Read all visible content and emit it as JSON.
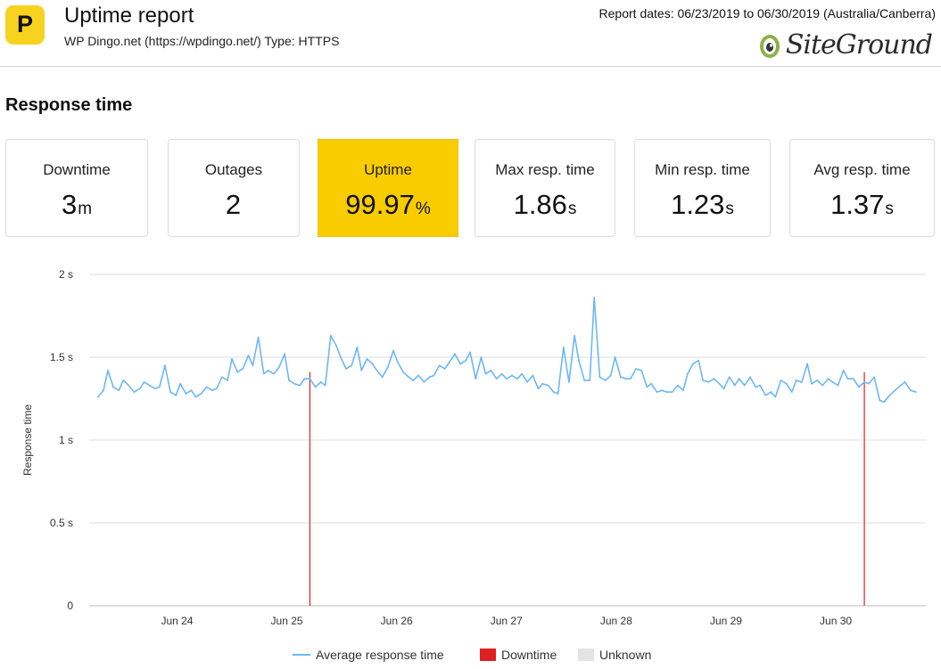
{
  "header": {
    "logo_letter": "P",
    "title": "Uptime report",
    "subtitle": "WP Dingo.net (https://wpdingo.net/) Type: HTTPS",
    "report_dates": "Report dates: 06/23/2019 to 06/30/2019 (Australia/Canberra)",
    "brand_logo_text": "SiteGround"
  },
  "section": {
    "title": "Response time"
  },
  "stats": [
    {
      "label": "Downtime",
      "value": "3",
      "unit": "m"
    },
    {
      "label": "Outages",
      "value": "2",
      "unit": ""
    },
    {
      "label": "Uptime",
      "value": "99.97",
      "unit": "%"
    },
    {
      "label": "Max resp. time",
      "value": "1.86",
      "unit": "s"
    },
    {
      "label": "Min resp. time",
      "value": "1.23",
      "unit": "s"
    },
    {
      "label": "Avg resp. time",
      "value": "1.37",
      "unit": "s"
    }
  ],
  "legend": {
    "avg": "Average response time",
    "down": "Downtime",
    "unknown": "Unknown"
  },
  "colors": {
    "highlight": "#f9cc00",
    "line": "#6cb8f3",
    "downtime": "#e02020",
    "unknown": "#e4e4e4",
    "grid": "#dddddd"
  },
  "chart_data": {
    "type": "line",
    "title": "",
    "xlabel": "",
    "ylabel": "Response time",
    "ylim": [
      0,
      2
    ],
    "y_ticks": [
      {
        "value": 0,
        "label": "0"
      },
      {
        "value": 0.5,
        "label": "0.5 s"
      },
      {
        "value": 1,
        "label": "1 s"
      },
      {
        "value": 1.5,
        "label": "1.5 s"
      },
      {
        "value": 2,
        "label": "2 s"
      }
    ],
    "xlim": [
      23.2,
      30.82
    ],
    "x_ticks": [
      {
        "value": 24,
        "label": "Jun 24"
      },
      {
        "value": 25,
        "label": "Jun 25"
      },
      {
        "value": 26,
        "label": "Jun 26"
      },
      {
        "value": 27,
        "label": "Jun 27"
      },
      {
        "value": 28,
        "label": "Jun 28"
      },
      {
        "value": 29,
        "label": "Jun 29"
      },
      {
        "value": 30,
        "label": "Jun 30"
      }
    ],
    "grid": "horizontal",
    "legend_position": "bottom",
    "downtime_events": [
      25.21,
      30.26
    ],
    "series": [
      {
        "name": "Average response time",
        "x": [
          23.28,
          23.33,
          23.37,
          23.42,
          23.47,
          23.51,
          23.56,
          23.61,
          23.66,
          23.7,
          23.75,
          23.8,
          23.84,
          23.89,
          23.94,
          23.99,
          24.03,
          24.08,
          24.13,
          24.17,
          24.22,
          24.27,
          24.32,
          24.36,
          24.41,
          24.46,
          24.5,
          24.55,
          24.6,
          24.65,
          24.69,
          24.74,
          24.79,
          24.83,
          24.88,
          24.93,
          24.98,
          25.02,
          25.07,
          25.12,
          25.16,
          25.21,
          25.26,
          25.31,
          25.35,
          25.4,
          25.45,
          25.49,
          25.54,
          25.59,
          25.64,
          25.68,
          25.73,
          25.78,
          25.82,
          25.87,
          25.92,
          25.97,
          26.01,
          26.06,
          26.11,
          26.15,
          26.2,
          26.25,
          26.3,
          26.34,
          26.39,
          26.44,
          26.48,
          26.53,
          26.58,
          26.63,
          26.67,
          26.72,
          26.77,
          26.81,
          26.86,
          26.91,
          26.96,
          27.0,
          27.05,
          27.1,
          27.14,
          27.19,
          27.24,
          27.29,
          27.33,
          27.38,
          27.43,
          27.47,
          27.52,
          27.57,
          27.62,
          27.66,
          27.71,
          27.76,
          27.8,
          27.85,
          27.9,
          27.95,
          27.99,
          28.04,
          28.09,
          28.13,
          28.18,
          28.23,
          28.28,
          28.32,
          28.37,
          28.42,
          28.46,
          28.51,
          28.56,
          28.61,
          28.65,
          28.7,
          28.75,
          28.79,
          28.84,
          28.89,
          28.94,
          28.98,
          29.03,
          29.08,
          29.12,
          29.17,
          29.22,
          29.27,
          29.31,
          29.36,
          29.41,
          29.45,
          29.5,
          29.55,
          29.6,
          29.64,
          29.69,
          29.74,
          29.78,
          29.83,
          29.88,
          29.93,
          29.97,
          30.02,
          30.07,
          30.11,
          30.16,
          30.21,
          30.26,
          30.3,
          30.35,
          30.4,
          30.44,
          30.49,
          30.54,
          30.59,
          30.63,
          30.68,
          30.73
        ],
        "values": [
          1.26,
          1.3,
          1.42,
          1.32,
          1.3,
          1.36,
          1.33,
          1.29,
          1.31,
          1.35,
          1.33,
          1.31,
          1.32,
          1.45,
          1.29,
          1.27,
          1.34,
          1.28,
          1.3,
          1.26,
          1.28,
          1.32,
          1.3,
          1.31,
          1.38,
          1.36,
          1.49,
          1.41,
          1.43,
          1.51,
          1.45,
          1.62,
          1.4,
          1.42,
          1.4,
          1.44,
          1.52,
          1.36,
          1.34,
          1.33,
          1.37,
          1.37,
          1.32,
          1.35,
          1.33,
          1.63,
          1.57,
          1.5,
          1.43,
          1.45,
          1.56,
          1.42,
          1.49,
          1.46,
          1.42,
          1.38,
          1.44,
          1.54,
          1.47,
          1.41,
          1.38,
          1.36,
          1.39,
          1.35,
          1.38,
          1.39,
          1.45,
          1.43,
          1.47,
          1.52,
          1.46,
          1.48,
          1.53,
          1.37,
          1.5,
          1.4,
          1.42,
          1.37,
          1.4,
          1.37,
          1.39,
          1.37,
          1.4,
          1.35,
          1.39,
          1.31,
          1.34,
          1.33,
          1.29,
          1.28,
          1.56,
          1.35,
          1.63,
          1.48,
          1.36,
          1.36,
          1.86,
          1.38,
          1.36,
          1.39,
          1.5,
          1.38,
          1.37,
          1.37,
          1.43,
          1.42,
          1.32,
          1.34,
          1.29,
          1.3,
          1.29,
          1.29,
          1.33,
          1.3,
          1.4,
          1.46,
          1.48,
          1.36,
          1.35,
          1.37,
          1.34,
          1.31,
          1.38,
          1.33,
          1.37,
          1.33,
          1.38,
          1.32,
          1.33,
          1.27,
          1.29,
          1.26,
          1.36,
          1.34,
          1.29,
          1.36,
          1.35,
          1.46,
          1.34,
          1.36,
          1.33,
          1.37,
          1.35,
          1.33,
          1.42,
          1.37,
          1.37,
          1.32,
          1.35,
          1.34,
          1.38,
          1.24,
          1.23,
          1.27,
          1.3,
          1.33,
          1.35,
          1.3,
          1.29
        ]
      }
    ]
  }
}
